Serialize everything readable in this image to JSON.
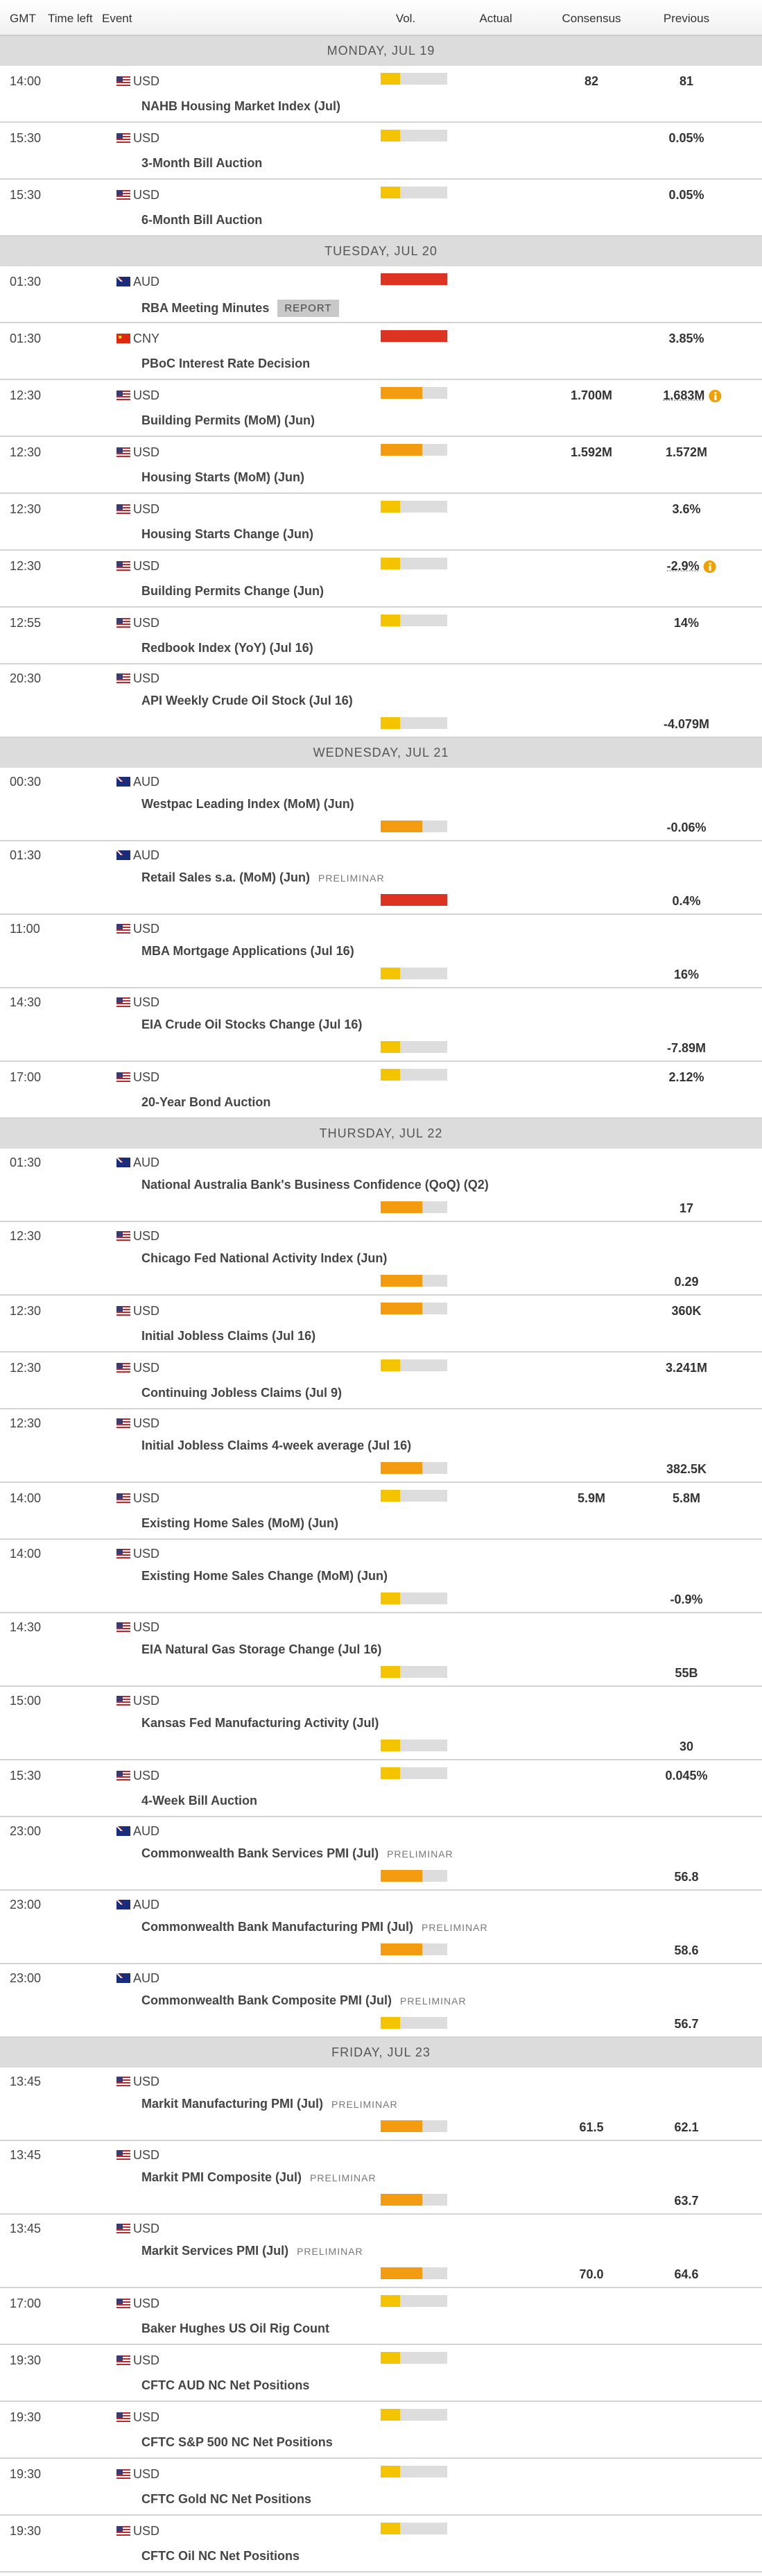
{
  "header": {
    "columns": [
      "GMT",
      "Time left",
      "Event",
      "Vol.",
      "Actual",
      "Consensus",
      "Previous"
    ]
  },
  "days": [
    {
      "label": "MONDAY, JUL 19",
      "events": [
        {
          "time": "14:00",
          "currency": "USD",
          "event": "NAHB Housing Market Index (Jul)",
          "volatility": "low",
          "consensus": "82",
          "previous": "81"
        },
        {
          "time": "15:30",
          "currency": "USD",
          "event": "3-Month Bill Auction",
          "volatility": "low",
          "previous": "0.05%"
        },
        {
          "time": "15:30",
          "currency": "USD",
          "event": "6-Month Bill Auction",
          "volatility": "low",
          "previous": "0.05%"
        }
      ]
    },
    {
      "label": "TUESDAY, JUL 20",
      "events": [
        {
          "time": "01:30",
          "currency": "AUD",
          "event": "RBA Meeting Minutes",
          "tag": "REPORT",
          "volatility": "high"
        },
        {
          "time": "01:30",
          "currency": "CNY",
          "event": "PBoC Interest Rate Decision",
          "volatility": "high",
          "previous": "3.85%"
        },
        {
          "time": "12:30",
          "currency": "USD",
          "event": "Building Permits (MoM) (Jun)",
          "volatility": "medium",
          "consensus": "1.700M",
          "previous": "1.683M",
          "revised": true
        },
        {
          "time": "12:30",
          "currency": "USD",
          "event": "Housing Starts (MoM) (Jun)",
          "volatility": "medium",
          "consensus": "1.592M",
          "previous": "1.572M"
        },
        {
          "time": "12:30",
          "currency": "USD",
          "event": "Housing Starts Change (Jun)",
          "volatility": "low",
          "previous": "3.6%"
        },
        {
          "time": "12:30",
          "currency": "USD",
          "event": "Building Permits Change (Jun)",
          "volatility": "low",
          "previous": "-2.9%",
          "revised": true
        },
        {
          "time": "12:55",
          "currency": "USD",
          "event": "Redbook Index (YoY) (Jul 16)",
          "volatility": "low",
          "previous": "14%"
        },
        {
          "time": "20:30",
          "currency": "USD",
          "event": "API Weekly Crude Oil Stock (Jul 16)",
          "volatility": "low",
          "previous": "-4.079M"
        }
      ]
    },
    {
      "label": "WEDNESDAY, JUL 21",
      "events": [
        {
          "time": "00:30",
          "currency": "AUD",
          "event": "Westpac Leading Index (MoM) (Jun)",
          "volatility": "medium",
          "previous": "-0.06%"
        },
        {
          "time": "01:30",
          "currency": "AUD",
          "event": "Retail Sales s.a. (MoM) (Jun)",
          "tag": "PRELIMINAR",
          "volatility": "high",
          "previous": "0.4%"
        },
        {
          "time": "11:00",
          "currency": "USD",
          "event": "MBA Mortgage Applications (Jul 16)",
          "volatility": "low",
          "previous": "16%"
        },
        {
          "time": "14:30",
          "currency": "USD",
          "event": "EIA Crude Oil Stocks Change (Jul 16)",
          "volatility": "low",
          "previous": "-7.89M"
        },
        {
          "time": "17:00",
          "currency": "USD",
          "event": "20-Year Bond Auction",
          "volatility": "low",
          "previous": "2.12%"
        }
      ]
    },
    {
      "label": "THURSDAY, JUL 22",
      "events": [
        {
          "time": "01:30",
          "currency": "AUD",
          "event": "National Australia Bank's Business Confidence (QoQ) (Q2)",
          "volatility": "medium",
          "previous": "17"
        },
        {
          "time": "12:30",
          "currency": "USD",
          "event": "Chicago Fed National Activity Index (Jun)",
          "volatility": "medium",
          "previous": "0.29"
        },
        {
          "time": "12:30",
          "currency": "USD",
          "event": "Initial Jobless Claims (Jul 16)",
          "volatility": "medium",
          "previous": "360K"
        },
        {
          "time": "12:30",
          "currency": "USD",
          "event": "Continuing Jobless Claims (Jul 9)",
          "volatility": "low",
          "previous": "3.241M"
        },
        {
          "time": "12:30",
          "currency": "USD",
          "event": "Initial Jobless Claims 4-week average (Jul 16)",
          "volatility": "medium",
          "previous": "382.5K"
        },
        {
          "time": "14:00",
          "currency": "USD",
          "event": "Existing Home Sales (MoM) (Jun)",
          "volatility": "low",
          "consensus": "5.9M",
          "previous": "5.8M"
        },
        {
          "time": "14:00",
          "currency": "USD",
          "event": "Existing Home Sales Change (MoM) (Jun)",
          "volatility": "low",
          "previous": "-0.9%"
        },
        {
          "time": "14:30",
          "currency": "USD",
          "event": "EIA Natural Gas Storage Change (Jul 16)",
          "volatility": "low",
          "previous": "55B"
        },
        {
          "time": "15:00",
          "currency": "USD",
          "event": "Kansas Fed Manufacturing Activity (Jul)",
          "volatility": "low",
          "previous": "30"
        },
        {
          "time": "15:30",
          "currency": "USD",
          "event": "4-Week Bill Auction",
          "volatility": "low",
          "previous": "0.045%"
        },
        {
          "time": "23:00",
          "currency": "AUD",
          "event": "Commonwealth Bank Services PMI (Jul)",
          "tag": "PRELIMINAR",
          "volatility": "medium",
          "previous": "56.8"
        },
        {
          "time": "23:00",
          "currency": "AUD",
          "event": "Commonwealth Bank Manufacturing PMI (Jul)",
          "tag": "PRELIMINAR",
          "volatility": "medium",
          "previous": "58.6"
        },
        {
          "time": "23:00",
          "currency": "AUD",
          "event": "Commonwealth Bank Composite PMI (Jul)",
          "tag": "PRELIMINAR",
          "volatility": "low",
          "previous": "56.7"
        }
      ]
    },
    {
      "label": "FRIDAY, JUL 23",
      "events": [
        {
          "time": "13:45",
          "currency": "USD",
          "event": "Markit Manufacturing PMI (Jul)",
          "tag": "PRELIMINAR",
          "volatility": "medium",
          "consensus": "61.5",
          "previous": "62.1"
        },
        {
          "time": "13:45",
          "currency": "USD",
          "event": "Markit PMI Composite (Jul)",
          "tag": "PRELIMINAR",
          "volatility": "medium",
          "previous": "63.7"
        },
        {
          "time": "13:45",
          "currency": "USD",
          "event": "Markit Services PMI (Jul)",
          "tag": "PRELIMINAR",
          "volatility": "medium",
          "consensus": "70.0",
          "previous": "64.6"
        },
        {
          "time": "17:00",
          "currency": "USD",
          "event": "Baker Hughes US Oil Rig Count",
          "volatility": "low"
        },
        {
          "time": "19:30",
          "currency": "USD",
          "event": "CFTC AUD NC Net Positions",
          "volatility": "low"
        },
        {
          "time": "19:30",
          "currency": "USD",
          "event": "CFTC S&P 500 NC Net Positions",
          "volatility": "low"
        },
        {
          "time": "19:30",
          "currency": "USD",
          "event": "CFTC Gold NC Net Positions",
          "volatility": "low"
        },
        {
          "time": "19:30",
          "currency": "USD",
          "event": "CFTC Oil NC Net Positions",
          "volatility": "low"
        }
      ]
    }
  ]
}
